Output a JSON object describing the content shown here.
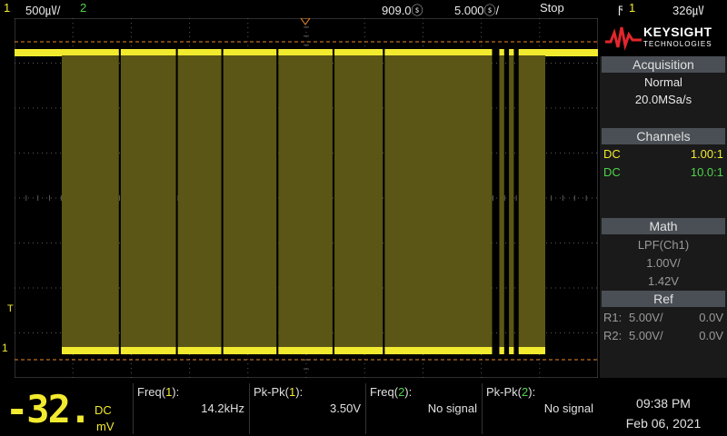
{
  "topbar": {
    "ch1_num": "1",
    "ch1_scale": "500㎶/",
    "ch2_num": "2",
    "time_delay": "909.0ⓢ",
    "time_scale": "5.000ⓢ/",
    "run_state": "Stop",
    "trigger_icon": "trigger-falling-edge-icon",
    "trigger_source": "1",
    "trigger_level": "326㎶"
  },
  "markers": {
    "trigger_level": "T",
    "ch1_ground": "1"
  },
  "panel": {
    "brand": "KEYSIGHT",
    "brand_sub": "TECHNOLOGIES",
    "acquisition": {
      "title": "Acquisition",
      "mode": "Normal",
      "rate": "20.0MSa/s"
    },
    "channels": {
      "title": "Channels",
      "rows": [
        {
          "coupling": "DC",
          "probe": "1.00:1"
        },
        {
          "coupling": "DC",
          "probe": "10.0:1"
        }
      ]
    },
    "math": {
      "title": "Math",
      "func": "LPF(Ch1)",
      "scale": "1.00V/",
      "offset": "1.42V"
    },
    "ref": {
      "title": "Ref",
      "rows": [
        {
          "label": "R1:",
          "scale": "5.00V/",
          "offset": "0.0V"
        },
        {
          "label": "R2:",
          "scale": "5.00V/",
          "offset": "0.0V"
        }
      ]
    }
  },
  "bottom": {
    "dvm_value": "-32.",
    "dvm_coupling": "DC",
    "dvm_unit": "mV",
    "measurements": [
      {
        "label_pre": "Freq(",
        "ch": "1",
        "label_post": "):",
        "value": "14.2kHz"
      },
      {
        "label_pre": "Pk-Pk(",
        "ch": "1",
        "label_post": "):",
        "value": "3.50V"
      },
      {
        "label_pre": "Freq(",
        "ch": "2",
        "label_post": "):",
        "value": "No signal"
      },
      {
        "label_pre": "Pk-Pk(",
        "ch": "2",
        "label_post": "):",
        "value": "No signal"
      }
    ],
    "time": "09:38 PM",
    "date": "Feb 06, 2021"
  },
  "colors": {
    "ch1": "#f2ea2e",
    "ch2": "#4fd34a",
    "grid": "#5a5a5a",
    "marker": "#e8892a"
  },
  "waveform": {
    "channel": "1",
    "bursts": [
      {
        "start": 0,
        "end": 0.118
      },
      {
        "start": 0.122,
        "end": 0.236
      },
      {
        "start": 0.24,
        "end": 0.33
      },
      {
        "start": 0.334,
        "end": 0.444
      },
      {
        "start": 0.448,
        "end": 0.56
      },
      {
        "start": 0.564,
        "end": 0.664
      },
      {
        "start": 0.668,
        "end": 0.89
      },
      {
        "start": 0.905,
        "end": 0.915
      },
      {
        "start": 0.925,
        "end": 0.935
      },
      {
        "start": 0.945,
        "end": 1.0
      }
    ]
  }
}
